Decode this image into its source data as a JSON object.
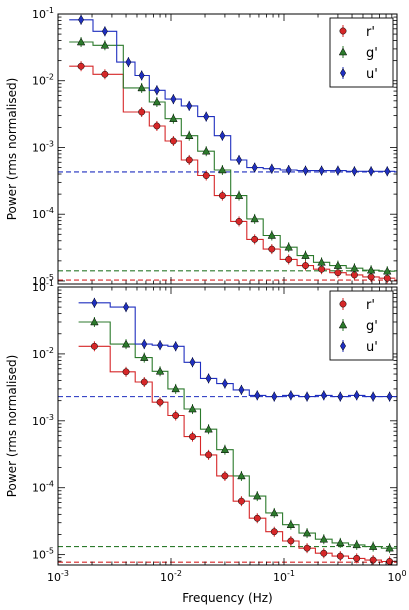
{
  "chart_data": [
    {
      "type": "line",
      "xscale": "log",
      "yscale": "log",
      "xlim": [
        0.001,
        1
      ],
      "ylim": [
        9e-06,
        0.1
      ],
      "ylabel": "Power (rms normalised)",
      "xlabel": "",
      "yticks": [
        {
          "value": 0.1,
          "label": "10",
          "exp": "-1"
        },
        {
          "value": 0.01,
          "label": "10",
          "exp": "-2"
        },
        {
          "value": 0.001,
          "label": "10",
          "exp": "-3"
        },
        {
          "value": 0.0001,
          "label": "10",
          "exp": "-4"
        },
        {
          "value": 1e-05,
          "label": "10",
          "exp": "-5"
        }
      ],
      "legend": {
        "position": "top-right"
      },
      "series": [
        {
          "name": "r'",
          "color": "#d62728",
          "marker": "circle",
          "x": [
            0.0016,
            0.0026,
            0.0055,
            0.0075,
            0.0105,
            0.0145,
            0.0205,
            0.0285,
            0.04,
            0.055,
            0.078,
            0.11,
            0.155,
            0.215,
            0.3,
            0.42,
            0.59,
            0.82
          ],
          "y": [
            0.0165,
            0.0125,
            0.0034,
            0.0021,
            0.00125,
            0.00065,
            0.00038,
            0.00019,
            7.8e-05,
            4.2e-05,
            3e-05,
            2.1e-05,
            1.7e-05,
            1.5e-05,
            1.33e-05,
            1.23e-05,
            1.15e-05,
            1.1e-05
          ],
          "noise": 1.03e-05
        },
        {
          "name": "g'",
          "color": "#2c7a2c",
          "marker": "triangle",
          "x": [
            0.0016,
            0.0026,
            0.0055,
            0.0075,
            0.0105,
            0.0145,
            0.0205,
            0.0285,
            0.04,
            0.055,
            0.078,
            0.11,
            0.155,
            0.215,
            0.3,
            0.42,
            0.59,
            0.82
          ],
          "y": [
            0.038,
            0.034,
            0.0078,
            0.0048,
            0.0027,
            0.0015,
            0.00088,
            0.00046,
            0.00019,
            8.5e-05,
            4.8e-05,
            3.2e-05,
            2.4e-05,
            1.9e-05,
            1.7e-05,
            1.55e-05,
            1.45e-05,
            1.4e-05
          ],
          "noise": 1.42e-05
        },
        {
          "name": "u'",
          "color": "#1f2fbf",
          "marker": "diamond",
          "x": [
            0.0016,
            0.0026,
            0.0042,
            0.0055,
            0.0075,
            0.0105,
            0.0145,
            0.0205,
            0.0285,
            0.04,
            0.055,
            0.078,
            0.11,
            0.155,
            0.215,
            0.3,
            0.42,
            0.59,
            0.82
          ],
          "y": [
            0.082,
            0.055,
            0.019,
            0.012,
            0.0072,
            0.0053,
            0.0042,
            0.0029,
            0.0015,
            0.00065,
            0.0005,
            0.00048,
            0.00046,
            0.00045,
            0.00045,
            0.00045,
            0.00044,
            0.00044,
            0.00044
          ],
          "noise": 0.00043
        }
      ]
    },
    {
      "type": "line",
      "xscale": "log",
      "yscale": "log",
      "xlim": [
        0.001,
        1
      ],
      "ylim": [
        7e-06,
        0.1
      ],
      "ylabel": "Power (rms normalised)",
      "xlabel": "Frequency (Hz)",
      "yticks": [
        {
          "value": 0.1,
          "label": "10",
          "exp": "-1"
        },
        {
          "value": 0.01,
          "label": "10",
          "exp": "-2"
        },
        {
          "value": 0.001,
          "label": "10",
          "exp": "-3"
        },
        {
          "value": 0.0001,
          "label": "10",
          "exp": "-4"
        },
        {
          "value": 1e-05,
          "label": "10",
          "exp": "-5"
        }
      ],
      "xticks": [
        {
          "value": 0.001,
          "label": "10",
          "exp": "-3"
        },
        {
          "value": 0.01,
          "label": "10",
          "exp": "-2"
        },
        {
          "value": 0.1,
          "label": "10",
          "exp": "-1"
        },
        {
          "value": 1,
          "label": "10",
          "exp": "0"
        }
      ],
      "legend": {
        "position": "top-right"
      },
      "series": [
        {
          "name": "r'",
          "color": "#d62728",
          "marker": "circle",
          "x": [
            0.0021,
            0.004,
            0.0058,
            0.008,
            0.011,
            0.0155,
            0.0215,
            0.03,
            0.042,
            0.058,
            0.082,
            0.115,
            0.16,
            0.225,
            0.315,
            0.44,
            0.615,
            0.86
          ],
          "y": [
            0.013,
            0.0054,
            0.0038,
            0.0019,
            0.0012,
            0.00058,
            0.00031,
            0.00015,
            6.3e-05,
            3.5e-05,
            2.2e-05,
            1.6e-05,
            1.25e-05,
            1.05e-05,
            9.5e-06,
            8.8e-06,
            8.3e-06,
            7.9e-06
          ],
          "noise": 7.7e-06
        },
        {
          "name": "g'",
          "color": "#2c7a2c",
          "marker": "triangle",
          "x": [
            0.0021,
            0.004,
            0.0058,
            0.008,
            0.011,
            0.0155,
            0.0215,
            0.03,
            0.042,
            0.058,
            0.082,
            0.115,
            0.16,
            0.225,
            0.315,
            0.44,
            0.615,
            0.86
          ],
          "y": [
            0.03,
            0.014,
            0.0088,
            0.0055,
            0.003,
            0.0015,
            0.00075,
            0.00037,
            0.00015,
            7.5e-05,
            4.2e-05,
            2.8e-05,
            2.1e-05,
            1.7e-05,
            1.5e-05,
            1.4e-05,
            1.32e-05,
            1.25e-05
          ],
          "noise": 1.32e-05
        },
        {
          "name": "u'",
          "color": "#1f2fbf",
          "marker": "diamond",
          "x": [
            0.0021,
            0.004,
            0.0058,
            0.008,
            0.011,
            0.0155,
            0.0215,
            0.03,
            0.042,
            0.058,
            0.082,
            0.115,
            0.16,
            0.225,
            0.315,
            0.44,
            0.615,
            0.86
          ],
          "y": [
            0.058,
            0.05,
            0.014,
            0.0135,
            0.013,
            0.0075,
            0.0043,
            0.0036,
            0.0029,
            0.0024,
            0.0023,
            0.0024,
            0.0023,
            0.0024,
            0.0023,
            0.0024,
            0.0023,
            0.0023
          ],
          "noise": 0.0023
        }
      ]
    }
  ]
}
